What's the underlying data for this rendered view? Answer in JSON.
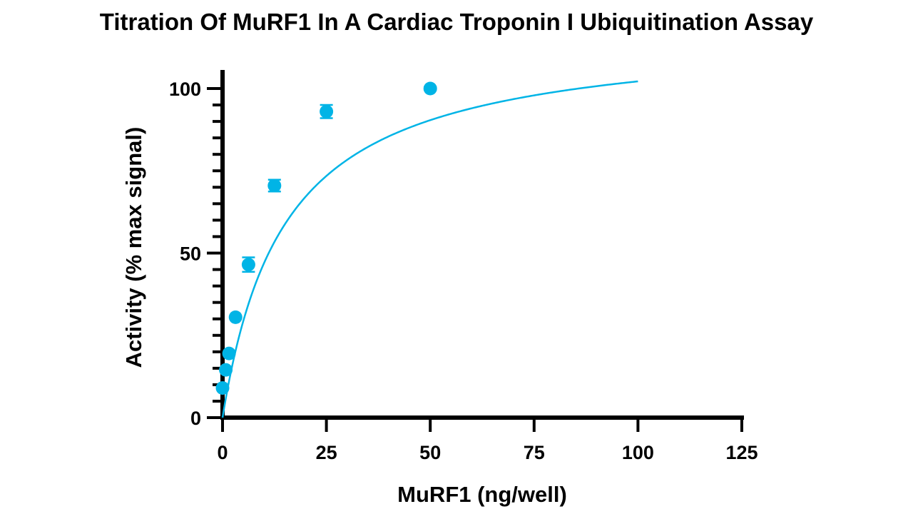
{
  "chart_data": {
    "type": "scatter",
    "title": "Titration Of MuRF1 In A Cardiac Troponin I Ubiquitination Assay",
    "xlabel": "MuRF1 (ng/well)",
    "ylabel": "Activity (% max signal)",
    "xlim": [
      0,
      125
    ],
    "ylim": [
      0,
      105
    ],
    "xticks": [
      0,
      25,
      50,
      75,
      100,
      125
    ],
    "yticks": [
      0,
      50,
      100
    ],
    "grid": false,
    "legend": "none",
    "colors": {
      "series": "#00B4E6",
      "axis": "#000000"
    },
    "series": [
      {
        "points": [
          {
            "x": 0.0,
            "y": 9,
            "err": 0
          },
          {
            "x": 0.78,
            "y": 14.5,
            "err": 0
          },
          {
            "x": 1.56,
            "y": 19.5,
            "err": 0
          },
          {
            "x": 3.13,
            "y": 30.5,
            "err": 0
          },
          {
            "x": 6.25,
            "y": 46.5,
            "err": 2.2
          },
          {
            "x": 12.5,
            "y": 70.5,
            "err": 1.8
          },
          {
            "x": 25,
            "y": 93,
            "err": 2.0
          },
          {
            "x": 50,
            "y": 100,
            "err": 0.5
          }
        ],
        "fit": {
          "model": "hyperbola",
          "Bmax": 117.5,
          "Kd": 15.0
        }
      }
    ]
  }
}
